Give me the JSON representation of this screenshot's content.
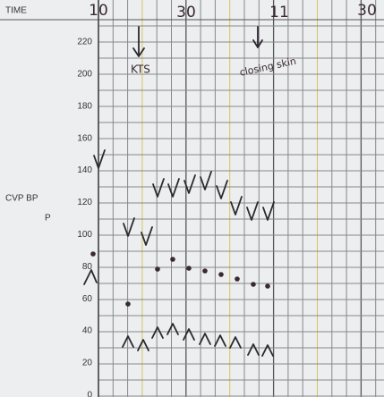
{
  "header": {
    "time_label": "TIME",
    "times": [
      "10",
      "30",
      "11",
      "30"
    ]
  },
  "axis": {
    "labels": [
      "220",
      "200",
      "180",
      "160",
      "140",
      "120",
      "100",
      "80",
      "60",
      "40",
      "20",
      "0"
    ]
  },
  "row_labels": {
    "cvp_bp": "CVP BP",
    "p": "P"
  },
  "annotations": [
    "KTS",
    "closing skin"
  ]
}
